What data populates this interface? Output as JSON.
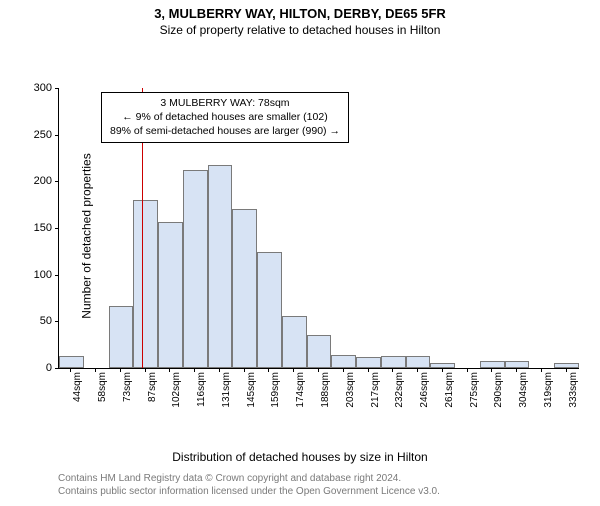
{
  "title_main": "3, MULBERRY WAY, HILTON, DERBY, DE65 5FR",
  "title_sub": "Size of property relative to detached houses in Hilton",
  "y_axis_label": "Number of detached properties",
  "x_axis_label": "Distribution of detached houses by size in Hilton",
  "footer_line1": "Contains HM Land Registry data © Crown copyright and database right 2024.",
  "footer_line2": "Contains public sector information licensed under the Open Government Licence v3.0.",
  "chart": {
    "type": "histogram",
    "background_color": "#ffffff",
    "bar_fill": "#d7e3f4",
    "bar_border": "#7a7a7a",
    "marker_line_color": "#cc0000",
    "axis_color": "#000000",
    "ylim_max": 300,
    "yticks": [
      0,
      50,
      100,
      150,
      200,
      250,
      300
    ],
    "xticks": [
      "44sqm",
      "58sqm",
      "73sqm",
      "87sqm",
      "102sqm",
      "116sqm",
      "131sqm",
      "145sqm",
      "159sqm",
      "174sqm",
      "188sqm",
      "203sqm",
      "217sqm",
      "232sqm",
      "246sqm",
      "261sqm",
      "275sqm",
      "290sqm",
      "304sqm",
      "319sqm",
      "333sqm"
    ],
    "bars": [
      13,
      0,
      66,
      180,
      156,
      212,
      218,
      170,
      124,
      56,
      35,
      14,
      12,
      13,
      13,
      5,
      0,
      8,
      7,
      0,
      5
    ],
    "marker_index": 3,
    "marker_fraction_in_bin": 0.35
  },
  "annotation": {
    "line1": "3 MULBERRY WAY: 78sqm",
    "line2": "← 9% of detached houses are smaller (102)",
    "line3": "89% of semi-detached houses are larger (990) →"
  }
}
